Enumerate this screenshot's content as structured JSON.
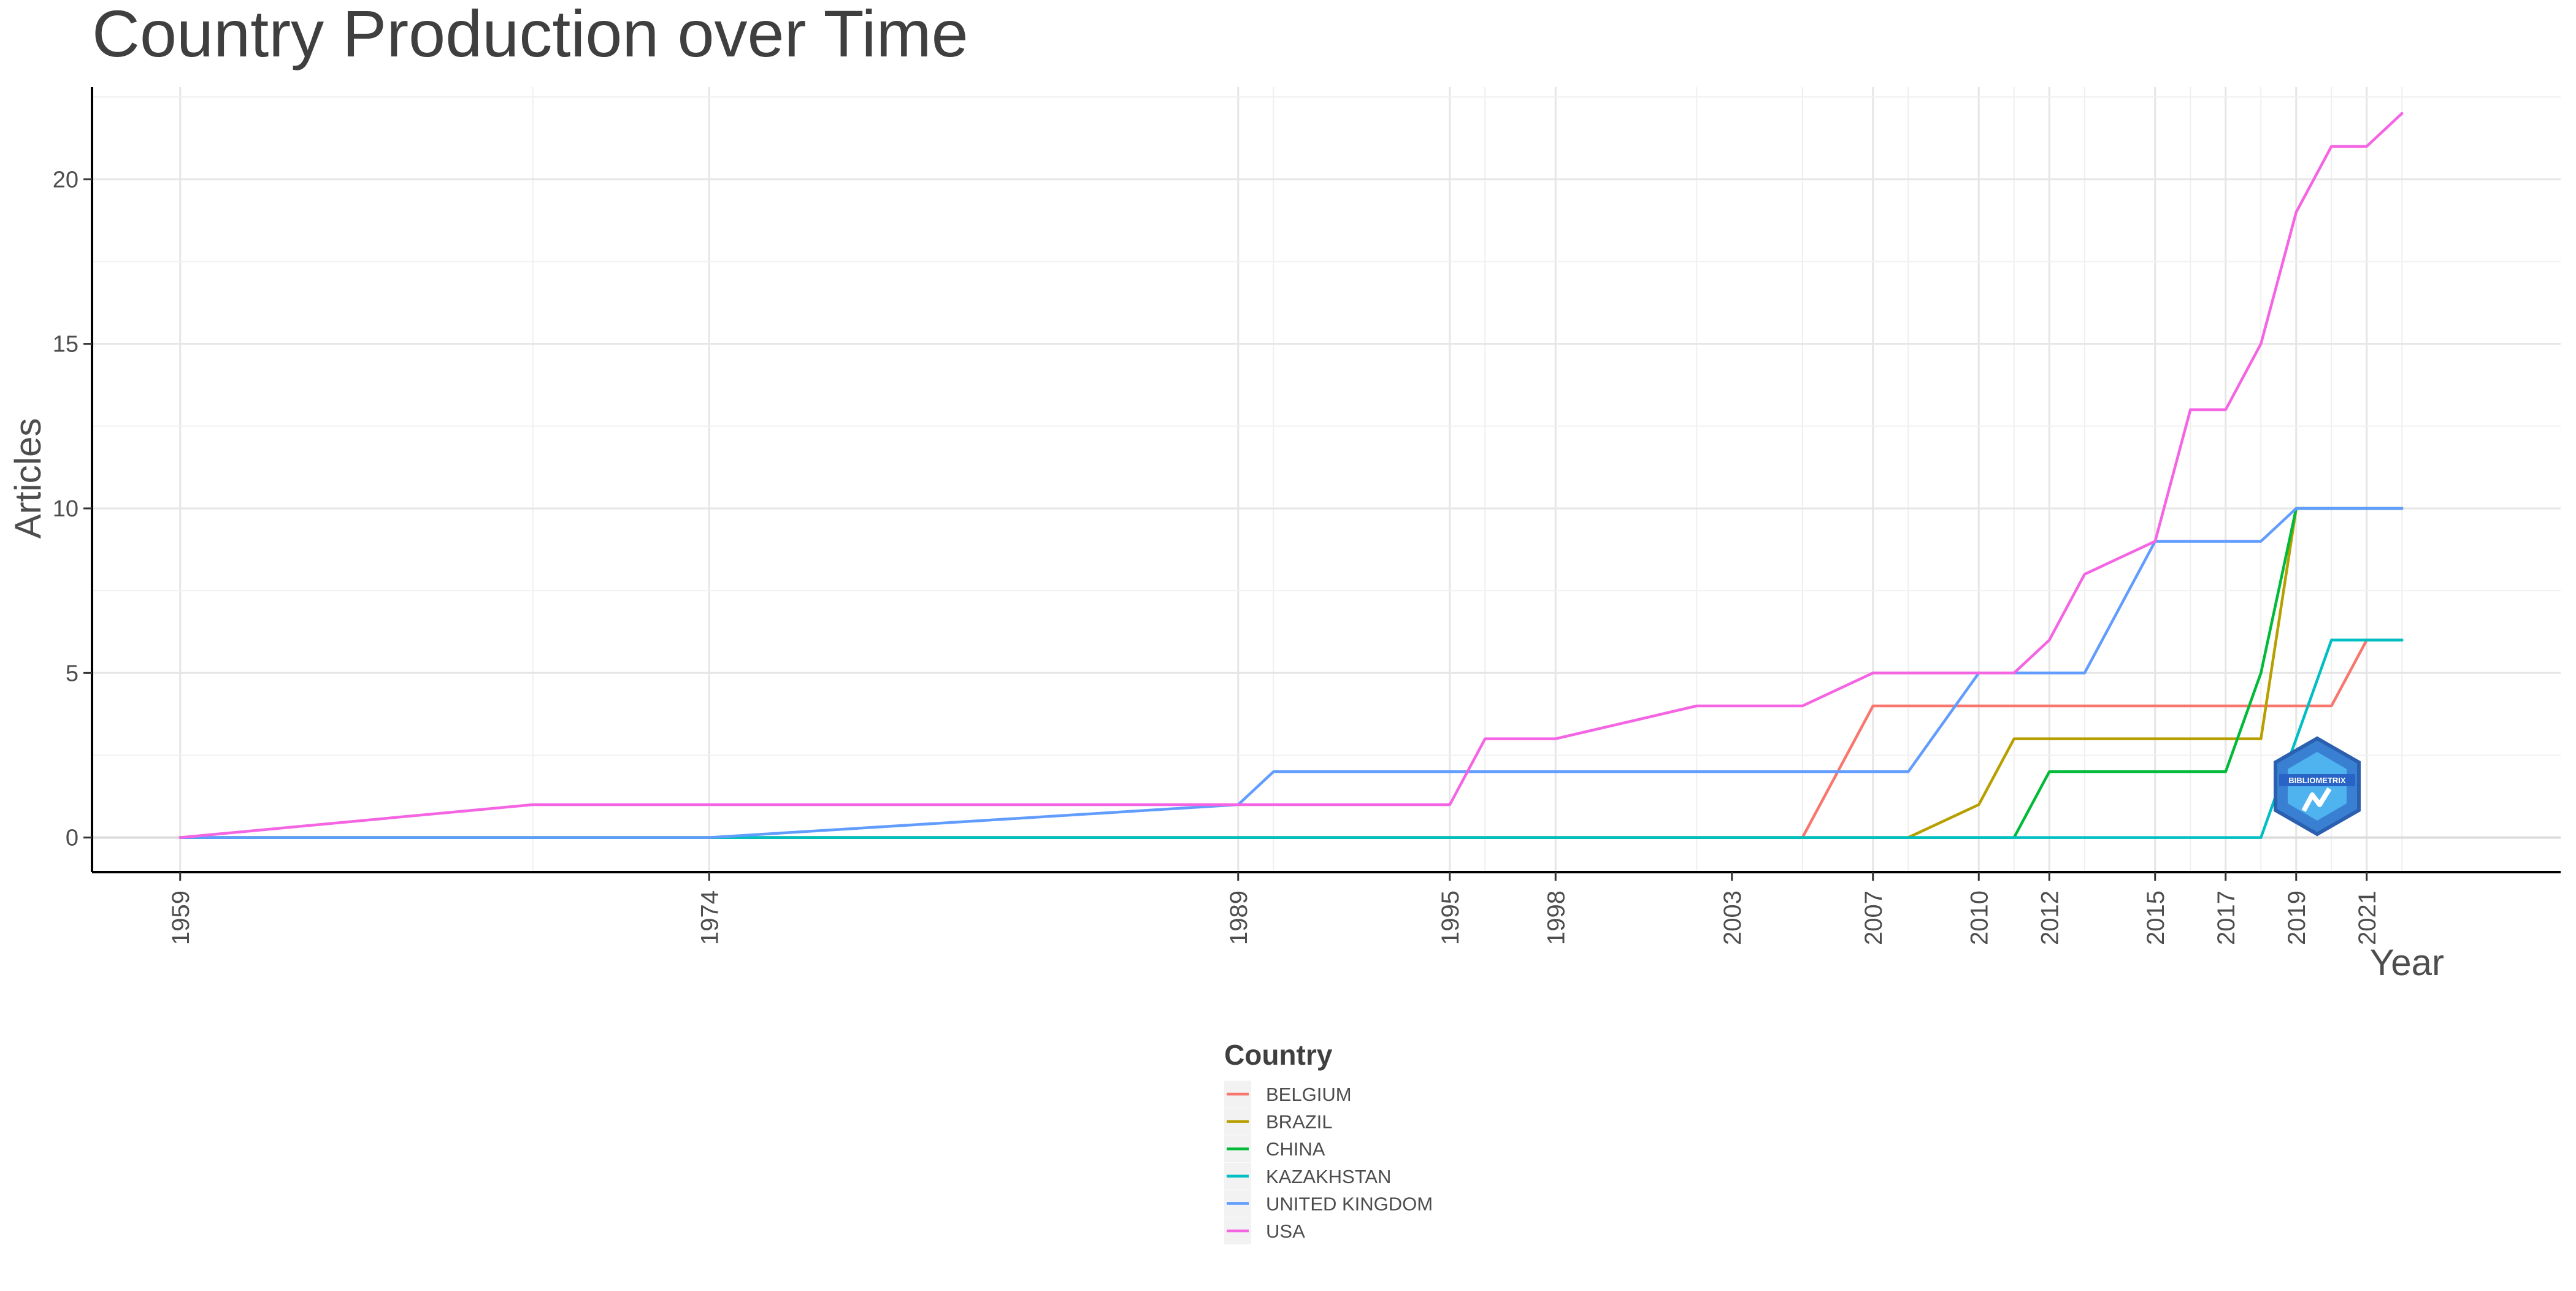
{
  "chart_data": {
    "type": "line",
    "title": "Country Production over Time",
    "xlabel": "Year",
    "ylabel": "Articles",
    "xlim": [
      1956.5,
      2026.5
    ],
    "ylim": [
      -1.05,
      22.8
    ],
    "x_ticks": [
      1959,
      1974,
      1989,
      1995,
      1998,
      2003,
      2007,
      2010,
      2012,
      2015,
      2017,
      2019,
      2021
    ],
    "y_ticks": [
      0,
      5,
      10,
      15,
      20
    ],
    "grid": true,
    "legend_position": "bottom",
    "legend_title": "Country",
    "x": [
      1959,
      1969,
      1974,
      1989,
      1990,
      1995,
      1996,
      1998,
      2002,
      2005,
      2007,
      2008,
      2010,
      2011,
      2012,
      2013,
      2015,
      2016,
      2017,
      2018,
      2019,
      2020,
      2021,
      2022
    ],
    "series": [
      {
        "name": "BELGIUM",
        "color": "#F8766D",
        "values": [
          0,
          0,
          0,
          0,
          0,
          0,
          0,
          0,
          0,
          0,
          4,
          4,
          4,
          4,
          4,
          4,
          4,
          4,
          4,
          4,
          4,
          4,
          6,
          6
        ]
      },
      {
        "name": "BRAZIL",
        "color": "#B79F00",
        "values": [
          0,
          0,
          0,
          0,
          0,
          0,
          0,
          0,
          0,
          0,
          0,
          0,
          1,
          3,
          3,
          3,
          3,
          3,
          3,
          3,
          10,
          10,
          10,
          10
        ]
      },
      {
        "name": "CHINA",
        "color": "#00BA38",
        "values": [
          0,
          0,
          0,
          0,
          0,
          0,
          0,
          0,
          0,
          0,
          0,
          0,
          0,
          0,
          2,
          2,
          2,
          2,
          2,
          5,
          10,
          10,
          10,
          10
        ]
      },
      {
        "name": "KAZAKHSTAN",
        "color": "#00BFC4",
        "values": [
          0,
          0,
          0,
          0,
          0,
          0,
          0,
          0,
          0,
          0,
          0,
          0,
          0,
          0,
          0,
          0,
          0,
          0,
          0,
          0,
          3,
          6,
          6,
          6
        ]
      },
      {
        "name": "UNITED KINGDOM",
        "color": "#619CFF",
        "values": [
          0,
          0,
          0,
          1,
          2,
          2,
          2,
          2,
          2,
          2,
          2,
          2,
          5,
          5,
          5,
          5,
          9,
          9,
          9,
          9,
          10,
          10,
          10,
          10
        ]
      },
      {
        "name": "USA",
        "color": "#F564E3",
        "values": [
          0,
          1,
          1,
          1,
          1,
          1,
          3,
          3,
          4,
          4,
          5,
          5,
          5,
          5,
          6,
          8,
          9,
          13,
          13,
          15,
          19,
          21,
          21,
          22
        ]
      }
    ]
  },
  "logo": {
    "name": "bibliometrix-logo",
    "text": "BIBLIOMETRIX"
  }
}
